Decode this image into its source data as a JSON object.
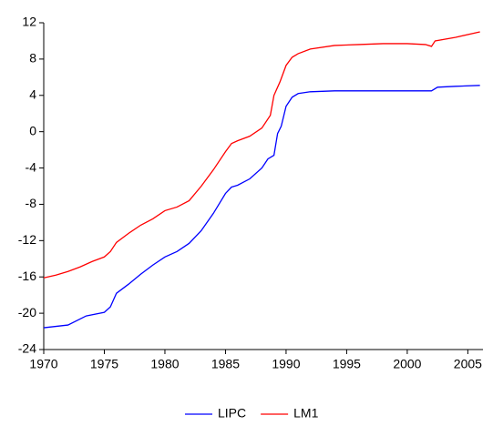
{
  "chart_data": {
    "type": "line",
    "xlim": [
      1970,
      2006.25
    ],
    "xticks": [
      1970,
      1975,
      1980,
      1985,
      1990,
      1995,
      2000,
      2005
    ],
    "ylim": [
      -24,
      12
    ],
    "yticks": [
      -24,
      -20,
      -16,
      -12,
      -8,
      -4,
      0,
      4,
      8,
      12
    ],
    "legend": "bottom",
    "series": [
      {
        "name": "LIPC",
        "color": "#0000ff",
        "x": [
          1970,
          1972,
          1973.5,
          1975,
          1975.5,
          1976,
          1977,
          1978,
          1979,
          1980,
          1981,
          1982,
          1983,
          1984,
          1985,
          1985.5,
          1986,
          1987,
          1988,
          1988.5,
          1989,
          1989.3,
          1989.6,
          1990,
          1990.5,
          1991,
          1992,
          1994,
          2000,
          2002,
          2002.5,
          2004,
          2006
        ],
        "values": [
          -21.6,
          -21.3,
          -20.3,
          -19.9,
          -19.3,
          -17.8,
          -16.8,
          -15.7,
          -14.7,
          -13.8,
          -13.2,
          -12.3,
          -10.9,
          -9.0,
          -6.8,
          -6.1,
          -5.9,
          -5.2,
          -4.0,
          -3.0,
          -2.6,
          -0.2,
          0.6,
          2.8,
          3.8,
          4.2,
          4.4,
          4.5,
          4.5,
          4.5,
          4.9,
          5.0,
          5.1
        ]
      },
      {
        "name": "LM1",
        "color": "#ff0000",
        "x": [
          1970,
          1971,
          1972,
          1973,
          1974,
          1975,
          1975.5,
          1976,
          1977,
          1978,
          1979,
          1980,
          1981,
          1982,
          1983,
          1984,
          1985,
          1985.5,
          1986,
          1987,
          1988,
          1988.7,
          1989,
          1989.5,
          1990,
          1990.5,
          1991,
          1992,
          1994,
          1996,
          1998,
          2000,
          2001.5,
          2002,
          2002.3,
          2004,
          2006
        ],
        "values": [
          -16.1,
          -15.8,
          -15.4,
          -14.9,
          -14.3,
          -13.8,
          -13.2,
          -12.2,
          -11.2,
          -10.3,
          -9.6,
          -8.7,
          -8.3,
          -7.6,
          -6.0,
          -4.2,
          -2.2,
          -1.3,
          -1.0,
          -0.5,
          0.4,
          1.8,
          4.0,
          5.5,
          7.3,
          8.2,
          8.6,
          9.1,
          9.5,
          9.6,
          9.7,
          9.7,
          9.6,
          9.4,
          10.0,
          10.4,
          11.0
        ]
      }
    ]
  }
}
